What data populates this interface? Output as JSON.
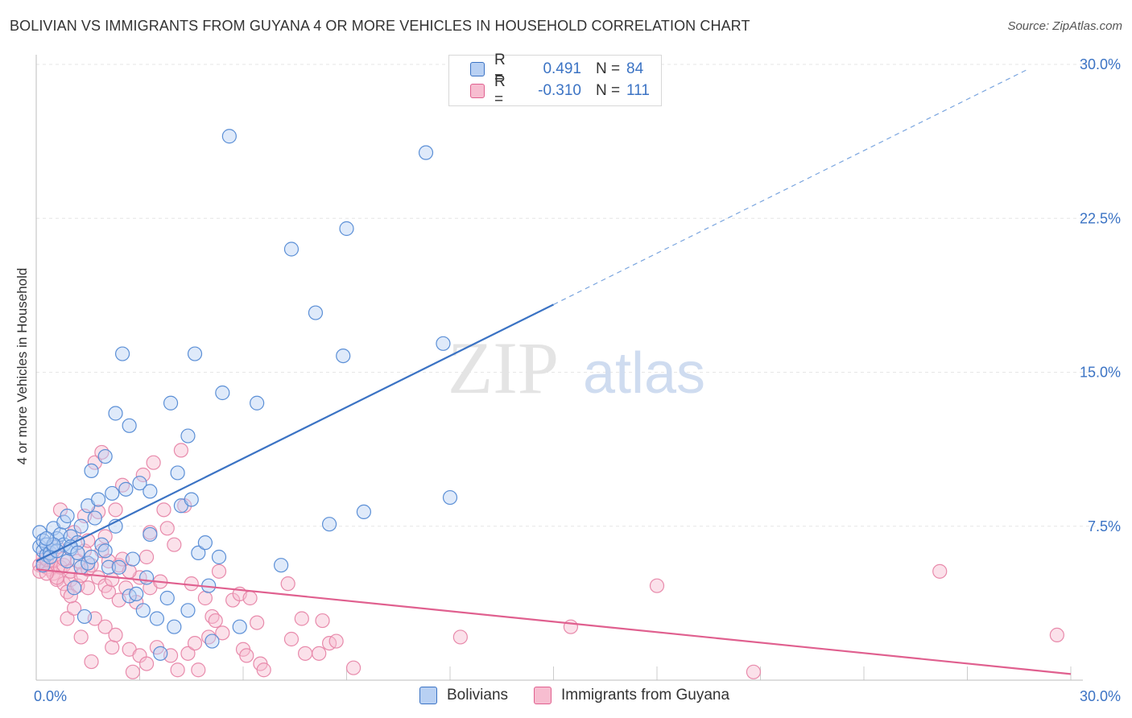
{
  "title": "BOLIVIAN VS IMMIGRANTS FROM GUYANA 4 OR MORE VEHICLES IN HOUSEHOLD CORRELATION CHART",
  "source": "Source: ZipAtlas.com",
  "watermark": {
    "zip": "ZIP",
    "atlas": "atlas"
  },
  "colors": {
    "blue": "#3b73c4",
    "blue_fill": "#b8d0f3",
    "pink": "#e0608f",
    "pink_fill": "#f7bdd0"
  },
  "legend": {
    "series": [
      {
        "name": "Bolivians",
        "r_label": "R =",
        "r_value": "0.491",
        "n_label": "N =",
        "n_value": "84"
      },
      {
        "name": "Immigrants from Guyana",
        "r_label": "R =",
        "r_value": "-0.310",
        "n_label": "N =",
        "n_value": "111"
      }
    ]
  },
  "chart_data": {
    "type": "scatter",
    "title": "BOLIVIAN VS IMMIGRANTS FROM GUYANA 4 OR MORE VEHICLES IN HOUSEHOLD CORRELATION CHART",
    "xlabel": "",
    "ylabel": "4 or more Vehicles in Household",
    "xlim": [
      0,
      30
    ],
    "ylim": [
      0,
      30
    ],
    "x_ticks": [
      "0.0%",
      "30.0%"
    ],
    "y_ticks": [
      {
        "value": 7.5,
        "label": "7.5%"
      },
      {
        "value": 15,
        "label": "15.0%"
      },
      {
        "value": 22.5,
        "label": "22.5%"
      },
      {
        "value": 30,
        "label": "30.0%"
      }
    ],
    "grid": true,
    "legend_position": "top-center",
    "series": [
      {
        "name": "Bolivians",
        "color": "#3b73c4",
        "trend": {
          "x0": 0,
          "y0": 5.8,
          "x1": 15,
          "y1": 18.3,
          "dashed_to_x": 28.8,
          "dashed_to_y": 29.8
        },
        "points": [
          [
            0.1,
            7.2
          ],
          [
            0.1,
            6.5
          ],
          [
            0.2,
            6.3
          ],
          [
            0.2,
            6.8
          ],
          [
            0.3,
            6.1
          ],
          [
            0.3,
            6.6
          ],
          [
            0.4,
            6.2
          ],
          [
            0.5,
            7.4
          ],
          [
            0.5,
            6.5
          ],
          [
            0.6,
            6.9
          ],
          [
            0.7,
            7.1
          ],
          [
            0.8,
            6.6
          ],
          [
            0.8,
            7.7
          ],
          [
            0.9,
            8.0
          ],
          [
            1.0,
            6.4
          ],
          [
            1.0,
            7.0
          ],
          [
            1.1,
            4.5
          ],
          [
            1.2,
            6.7
          ],
          [
            1.3,
            5.5
          ],
          [
            1.3,
            7.5
          ],
          [
            1.4,
            3.1
          ],
          [
            1.5,
            5.7
          ],
          [
            1.5,
            8.5
          ],
          [
            1.6,
            10.2
          ],
          [
            1.7,
            7.9
          ],
          [
            1.8,
            8.8
          ],
          [
            1.9,
            6.6
          ],
          [
            2.0,
            10.9
          ],
          [
            2.1,
            5.5
          ],
          [
            2.2,
            9.1
          ],
          [
            2.3,
            13.0
          ],
          [
            2.3,
            7.5
          ],
          [
            2.4,
            5.5
          ],
          [
            2.5,
            15.9
          ],
          [
            2.6,
            9.3
          ],
          [
            2.7,
            12.4
          ],
          [
            2.7,
            4.1
          ],
          [
            2.8,
            5.9
          ],
          [
            2.9,
            4.2
          ],
          [
            3.0,
            9.6
          ],
          [
            3.1,
            3.4
          ],
          [
            3.2,
            5.0
          ],
          [
            3.3,
            7.1
          ],
          [
            3.3,
            9.2
          ],
          [
            3.5,
            3.0
          ],
          [
            3.6,
            1.3
          ],
          [
            3.8,
            4.0
          ],
          [
            3.9,
            13.5
          ],
          [
            4.0,
            2.6
          ],
          [
            4.1,
            10.1
          ],
          [
            4.2,
            8.5
          ],
          [
            4.4,
            3.4
          ],
          [
            4.4,
            11.9
          ],
          [
            4.5,
            8.8
          ],
          [
            4.6,
            15.9
          ],
          [
            4.7,
            6.2
          ],
          [
            4.9,
            6.7
          ],
          [
            5.0,
            4.6
          ],
          [
            5.1,
            1.9
          ],
          [
            5.3,
            6.0
          ],
          [
            5.4,
            14.0
          ],
          [
            5.6,
            26.5
          ],
          [
            5.9,
            2.6
          ],
          [
            6.4,
            13.5
          ],
          [
            7.1,
            5.6
          ],
          [
            7.4,
            21.0
          ],
          [
            8.1,
            17.9
          ],
          [
            8.5,
            7.6
          ],
          [
            8.9,
            15.8
          ],
          [
            9.0,
            22.0
          ],
          [
            9.5,
            8.2
          ],
          [
            11.3,
            25.7
          ],
          [
            11.8,
            16.4
          ],
          [
            12.0,
            8.9
          ],
          [
            0.2,
            5.6
          ],
          [
            0.4,
            6.0
          ],
          [
            0.6,
            6.3
          ],
          [
            1.0,
            6.5
          ],
          [
            1.6,
            6.0
          ],
          [
            2.0,
            6.3
          ],
          [
            0.9,
            5.8
          ],
          [
            1.2,
            6.2
          ],
          [
            0.5,
            6.6
          ],
          [
            0.3,
            6.9
          ]
        ]
      },
      {
        "name": "Immigrants from Guyana",
        "color": "#e0608f",
        "trend": {
          "x0": 0,
          "y0": 5.4,
          "x1": 30,
          "y1": 0.3
        },
        "points": [
          [
            0.1,
            5.6
          ],
          [
            0.1,
            5.3
          ],
          [
            0.2,
            5.7
          ],
          [
            0.2,
            6.0
          ],
          [
            0.3,
            5.5
          ],
          [
            0.3,
            5.9
          ],
          [
            0.4,
            5.4
          ],
          [
            0.4,
            6.2
          ],
          [
            0.5,
            5.8
          ],
          [
            0.5,
            5.2
          ],
          [
            0.6,
            4.9
          ],
          [
            0.6,
            6.5
          ],
          [
            0.7,
            5.5
          ],
          [
            0.7,
            8.3
          ],
          [
            0.8,
            4.7
          ],
          [
            0.8,
            5.6
          ],
          [
            0.9,
            4.3
          ],
          [
            0.9,
            3.0
          ],
          [
            1.0,
            4.9
          ],
          [
            1.0,
            5.3
          ],
          [
            1.1,
            7.2
          ],
          [
            1.1,
            3.5
          ],
          [
            1.2,
            5.8
          ],
          [
            1.2,
            4.6
          ],
          [
            1.3,
            5.1
          ],
          [
            1.3,
            2.1
          ],
          [
            1.4,
            6.3
          ],
          [
            1.4,
            8.0
          ],
          [
            1.5,
            4.5
          ],
          [
            1.5,
            5.4
          ],
          [
            1.6,
            5.6
          ],
          [
            1.6,
            0.9
          ],
          [
            1.7,
            3.0
          ],
          [
            1.7,
            10.6
          ],
          [
            1.8,
            8.2
          ],
          [
            1.8,
            5.0
          ],
          [
            1.9,
            11.1
          ],
          [
            1.9,
            6.3
          ],
          [
            2.0,
            4.6
          ],
          [
            2.0,
            2.6
          ],
          [
            2.1,
            5.8
          ],
          [
            2.1,
            4.3
          ],
          [
            2.2,
            1.6
          ],
          [
            2.2,
            4.9
          ],
          [
            2.3,
            2.2
          ],
          [
            2.3,
            8.3
          ],
          [
            2.4,
            3.9
          ],
          [
            2.4,
            5.6
          ],
          [
            2.5,
            9.5
          ],
          [
            2.5,
            5.9
          ],
          [
            2.6,
            4.5
          ],
          [
            2.7,
            1.5
          ],
          [
            2.8,
            0.4
          ],
          [
            2.9,
            3.8
          ],
          [
            3.0,
            5.0
          ],
          [
            3.0,
            1.2
          ],
          [
            3.1,
            10.0
          ],
          [
            3.2,
            0.8
          ],
          [
            3.3,
            7.2
          ],
          [
            3.3,
            4.5
          ],
          [
            3.4,
            10.6
          ],
          [
            3.5,
            1.6
          ],
          [
            3.6,
            4.8
          ],
          [
            3.7,
            8.3
          ],
          [
            3.8,
            7.4
          ],
          [
            3.9,
            1.2
          ],
          [
            4.0,
            6.6
          ],
          [
            4.1,
            0.5
          ],
          [
            4.2,
            11.2
          ],
          [
            4.3,
            8.5
          ],
          [
            4.4,
            1.3
          ],
          [
            4.5,
            4.7
          ],
          [
            4.6,
            1.8
          ],
          [
            4.7,
            0.5
          ],
          [
            4.9,
            4.0
          ],
          [
            5.0,
            2.1
          ],
          [
            5.1,
            3.1
          ],
          [
            5.2,
            2.9
          ],
          [
            5.3,
            5.3
          ],
          [
            5.4,
            2.3
          ],
          [
            5.7,
            3.9
          ],
          [
            5.9,
            4.2
          ],
          [
            6.0,
            1.5
          ],
          [
            6.1,
            1.2
          ],
          [
            6.2,
            4.0
          ],
          [
            6.4,
            2.8
          ],
          [
            6.5,
            0.8
          ],
          [
            6.6,
            0.5
          ],
          [
            7.3,
            4.7
          ],
          [
            7.4,
            2.0
          ],
          [
            7.7,
            3.0
          ],
          [
            7.8,
            1.3
          ],
          [
            8.2,
            1.3
          ],
          [
            8.3,
            2.9
          ],
          [
            8.5,
            1.8
          ],
          [
            8.7,
            1.9
          ],
          [
            9.2,
            0.6
          ],
          [
            12.3,
            2.1
          ],
          [
            15.5,
            2.6
          ],
          [
            18.0,
            4.6
          ],
          [
            20.8,
            0.4
          ],
          [
            26.2,
            5.3
          ],
          [
            29.6,
            2.2
          ],
          [
            0.6,
            5.0
          ],
          [
            1.0,
            4.1
          ],
          [
            2.7,
            5.3
          ],
          [
            3.2,
            6.0
          ],
          [
            0.3,
            5.2
          ],
          [
            0.8,
            5.9
          ],
          [
            1.5,
            6.8
          ],
          [
            2.0,
            7.0
          ]
        ]
      }
    ]
  }
}
